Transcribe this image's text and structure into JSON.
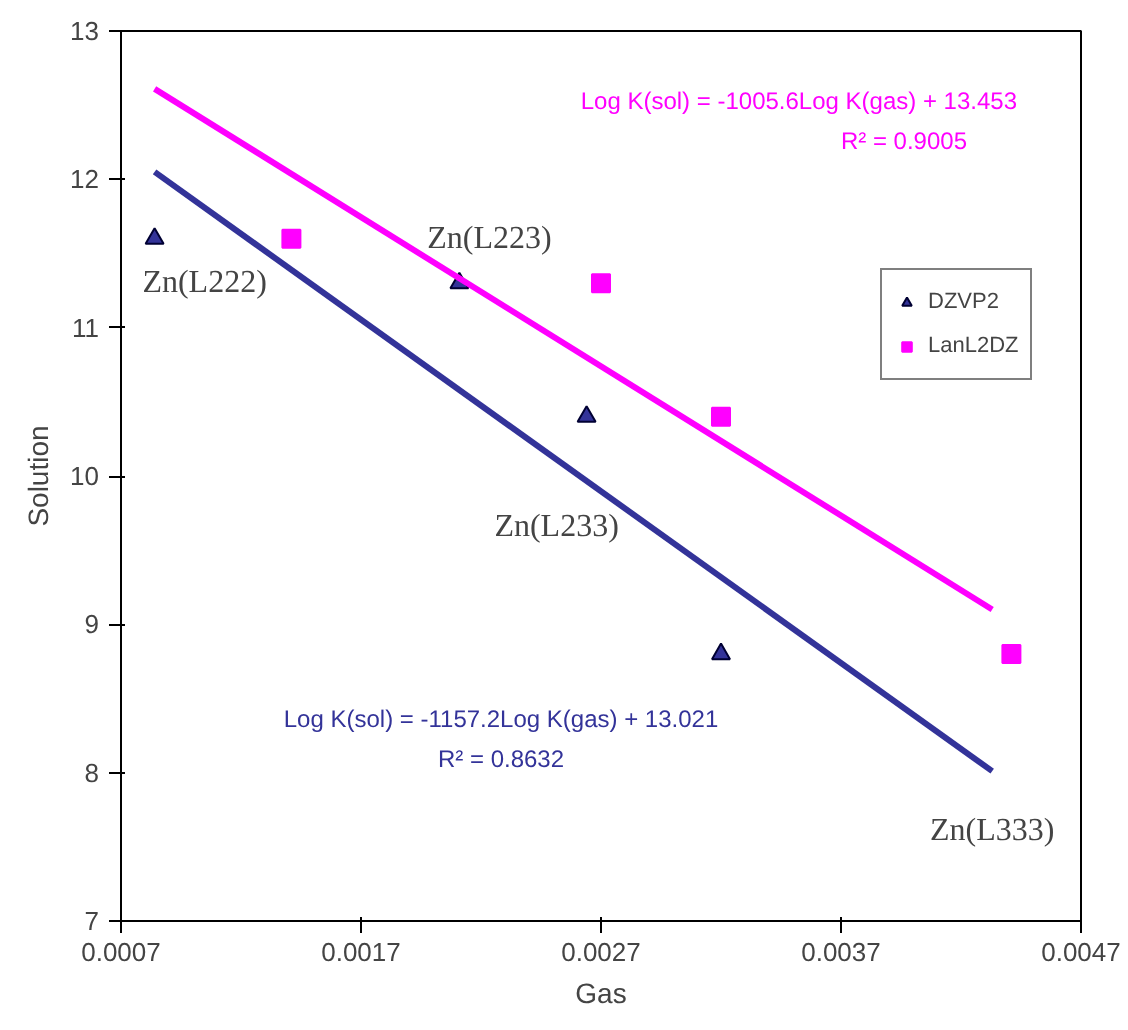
{
  "chart_data": {
    "type": "scatter",
    "xlabel": "Gas",
    "ylabel": "Solution",
    "xlim": [
      0.0007,
      0.0047
    ],
    "xticks": [
      0.0007,
      0.0017,
      0.0027,
      0.0037,
      0.0047
    ],
    "ylim": [
      7,
      13
    ],
    "yticks": [
      7,
      8,
      9,
      10,
      11,
      12,
      13
    ],
    "grid": false,
    "legend": "right",
    "series": [
      {
        "name": "DZVP2",
        "color": "#333399",
        "marker": "triangle",
        "x": [
          0.00084,
          0.00211,
          0.00264,
          0.0032
        ],
        "values": [
          11.6,
          11.3,
          10.4,
          8.8
        ]
      },
      {
        "name": "LanL2DZ",
        "color": "#ff00ff",
        "marker": "square",
        "x": [
          0.00141,
          0.0027,
          0.0032,
          0.00441
        ],
        "values": [
          11.6,
          11.3,
          10.4,
          8.8
        ]
      },
      {
        "type": "line",
        "color": "#ff00ff",
        "line_style": "solid",
        "x": [
          0.00084,
          0.00433
        ],
        "values": [
          12.61,
          9.1
        ]
      },
      {
        "type": "line",
        "color": "#333399",
        "line_style": "solid",
        "x": [
          0.00084,
          0.00433
        ],
        "values": [
          12.05,
          8.01
        ]
      }
    ],
    "annotations": [
      "Log K(sol) = -1005.6Log K(gas) + 13.453\nR² = 0.9005",
      "Log K(sol) = -1157.2Log K(gas) + 13.021\nR² = 0.8632",
      {
        "text": "Zn(L222)",
        "x": 0.00084,
        "y": 11.6
      },
      {
        "text": "Zn(L223)",
        "x": 0.00211,
        "y": 11.3
      },
      {
        "text": "Zn(L233)",
        "x": 0.00264,
        "y": 10.4
      },
      {
        "text": "Zn(L333)",
        "x": 0.00433,
        "y": 8.01
      }
    ]
  }
}
